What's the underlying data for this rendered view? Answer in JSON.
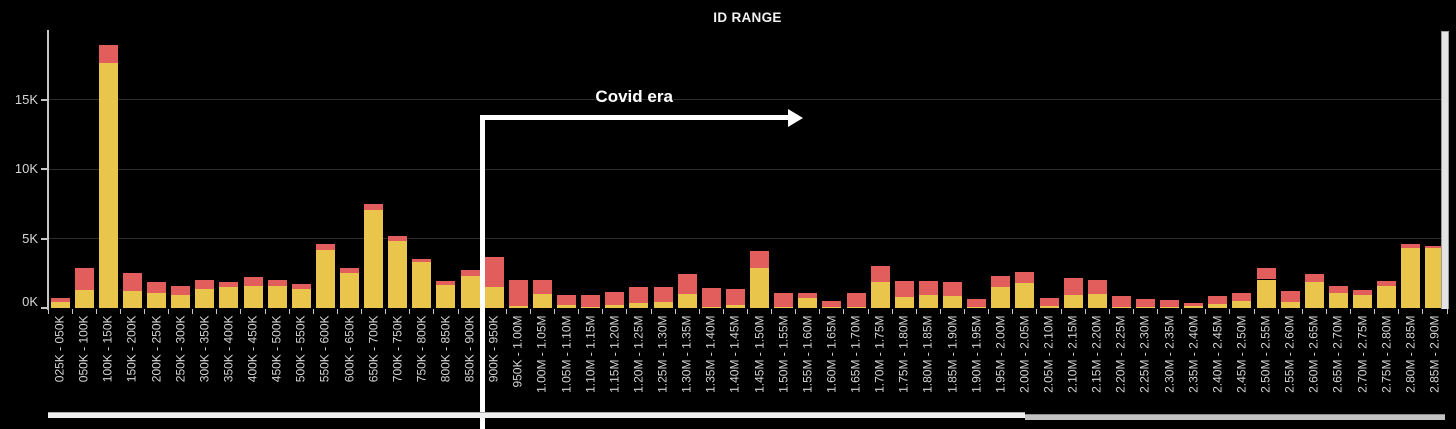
{
  "title": "ID RANGE",
  "annotation": {
    "label": "Covid era",
    "starts_at_category": "900K - 950K"
  },
  "y_axis": {
    "tick_labels": [
      "0K",
      "5K",
      "10K",
      "15K"
    ],
    "tick_values": [
      0,
      5000,
      10000,
      15000
    ],
    "max": 20000
  },
  "colors": {
    "background": "#000000",
    "bar_yellow": "#E9C54B",
    "bar_red": "#E15E5C",
    "gridline": "#2D2D2D",
    "axis": "#C6C6C6",
    "label_text": "#D6D6D6",
    "title_text": "#F2F2F2",
    "annotation": "#FFFFFF",
    "scrollbar": "#E3E3E3"
  },
  "chart_data": {
    "type": "bar",
    "stacked": true,
    "title": "ID RANGE",
    "xlabel": "",
    "ylabel": "",
    "ylim": [
      0,
      20000
    ],
    "grid": true,
    "legend_position": "none",
    "categories": [
      "025K - 050K",
      "050K - 100K",
      "100K - 150K",
      "150K - 200K",
      "200K - 250K",
      "250K - 300K",
      "300K - 350K",
      "350K - 400K",
      "400K - 450K",
      "450K - 500K",
      "500K - 550K",
      "550K - 600K",
      "600K - 650K",
      "650K - 700K",
      "700K - 750K",
      "750K - 800K",
      "800K - 850K",
      "850K - 900K",
      "900K - 950K",
      "950K - 1.00M",
      "1.00M - 1.05M",
      "1.05M - 1.10M",
      "1.10M - 1.15M",
      "1.15M - 1.20M",
      "1.20M - 1.25M",
      "1.25M - 1.30M",
      "1.30M - 1.35M",
      "1.35M - 1.40M",
      "1.40M - 1.45M",
      "1.45M - 1.50M",
      "1.50M - 1.55M",
      "1.55M - 1.60M",
      "1.60M - 1.65M",
      "1.65M - 1.70M",
      "1.70M - 1.75M",
      "1.75M - 1.80M",
      "1.80M - 1.85M",
      "1.85M - 1.90M",
      "1.90M - 1.95M",
      "1.95M - 2.00M",
      "2.00M - 2.05M",
      "2.05M - 2.10M",
      "2.10M - 2.15M",
      "2.15M - 2.20M",
      "2.20M - 2.25M",
      "2.25M - 2.30M",
      "2.30M - 2.35M",
      "2.35M - 2.40M",
      "2.40M - 2.45M",
      "2.45M - 2.50M",
      "2.50M - 2.55M",
      "2.55M - 2.60M",
      "2.60M - 2.65M",
      "2.65M - 2.70M",
      "2.70M - 2.75M",
      "2.75M - 2.80M",
      "2.80M - 2.85M",
      "2.85M - 2.90M"
    ],
    "series": [
      {
        "name": "lower segment (yellow)",
        "color": "#E9C54B",
        "values": [
          400,
          1300,
          17600,
          1200,
          1100,
          950,
          1400,
          1500,
          1600,
          1600,
          1400,
          4200,
          2500,
          7050,
          4800,
          3300,
          1650,
          2300,
          1500,
          150,
          1000,
          200,
          50,
          250,
          350,
          450,
          1000,
          100,
          200,
          2900,
          50,
          750,
          50,
          100,
          1900,
          800,
          900,
          850,
          50,
          1500,
          1800,
          150,
          950,
          1000,
          50,
          50,
          50,
          150,
          300,
          500,
          2050,
          450,
          1850,
          1100,
          900,
          1600,
          4300,
          4300
        ]
      },
      {
        "name": "upper segment (red)",
        "color": "#E15E5C",
        "values": [
          350,
          1600,
          1300,
          1300,
          750,
          600,
          650,
          400,
          650,
          400,
          300,
          400,
          350,
          400,
          350,
          200,
          300,
          450,
          2200,
          1850,
          1050,
          700,
          850,
          900,
          1150,
          1050,
          1450,
          1350,
          1150,
          1200,
          1000,
          350,
          450,
          950,
          1150,
          1150,
          1050,
          1050,
          600,
          800,
          800,
          600,
          1200,
          1000,
          800,
          600,
          550,
          200,
          550,
          600,
          800,
          750,
          600,
          450,
          400,
          350,
          300,
          150
        ]
      }
    ]
  }
}
